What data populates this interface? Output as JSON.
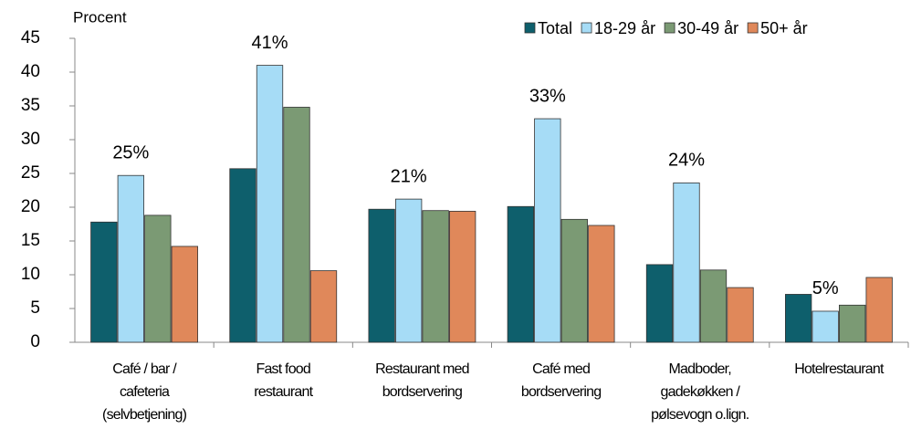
{
  "chart_data": {
    "type": "bar",
    "y_label": "Procent",
    "categories": [
      [
        "Café / bar /",
        "cafeteria",
        "(selvbetjening)"
      ],
      [
        "Fast food",
        "restaurant"
      ],
      [
        "Restaurant med",
        "bordservering"
      ],
      [
        "Café med",
        "bordservering"
      ],
      [
        "Madboder,",
        "gadekøkken /",
        "pølsevogn o.lign."
      ],
      [
        "Hotelrestaurant"
      ]
    ],
    "series": [
      {
        "name": "Total",
        "color": "#0e5f6c",
        "values": [
          17.8,
          25.7,
          19.7,
          20.1,
          11.5,
          7.1
        ]
      },
      {
        "name": "18-29 år",
        "color": "#a6dcf6",
        "values": [
          24.7,
          41,
          21.2,
          33.1,
          23.6,
          4.6
        ],
        "value_labels": [
          "25%",
          "41%",
          "21%",
          "33%",
          "24%",
          "5%"
        ]
      },
      {
        "name": "30-49 år",
        "color": "#7b9a74",
        "values": [
          18.8,
          34.8,
          19.5,
          18.2,
          10.7,
          5.5
        ]
      },
      {
        "name": "50+ år",
        "color": "#e0885a",
        "values": [
          14.2,
          10.6,
          19.4,
          17.3,
          8.1,
          9.6
        ]
      }
    ],
    "ylim": [
      0,
      45
    ],
    "yticks": [
      0,
      5,
      10,
      15,
      20,
      25,
      30,
      35,
      40,
      45
    ],
    "legend": "top-right"
  }
}
